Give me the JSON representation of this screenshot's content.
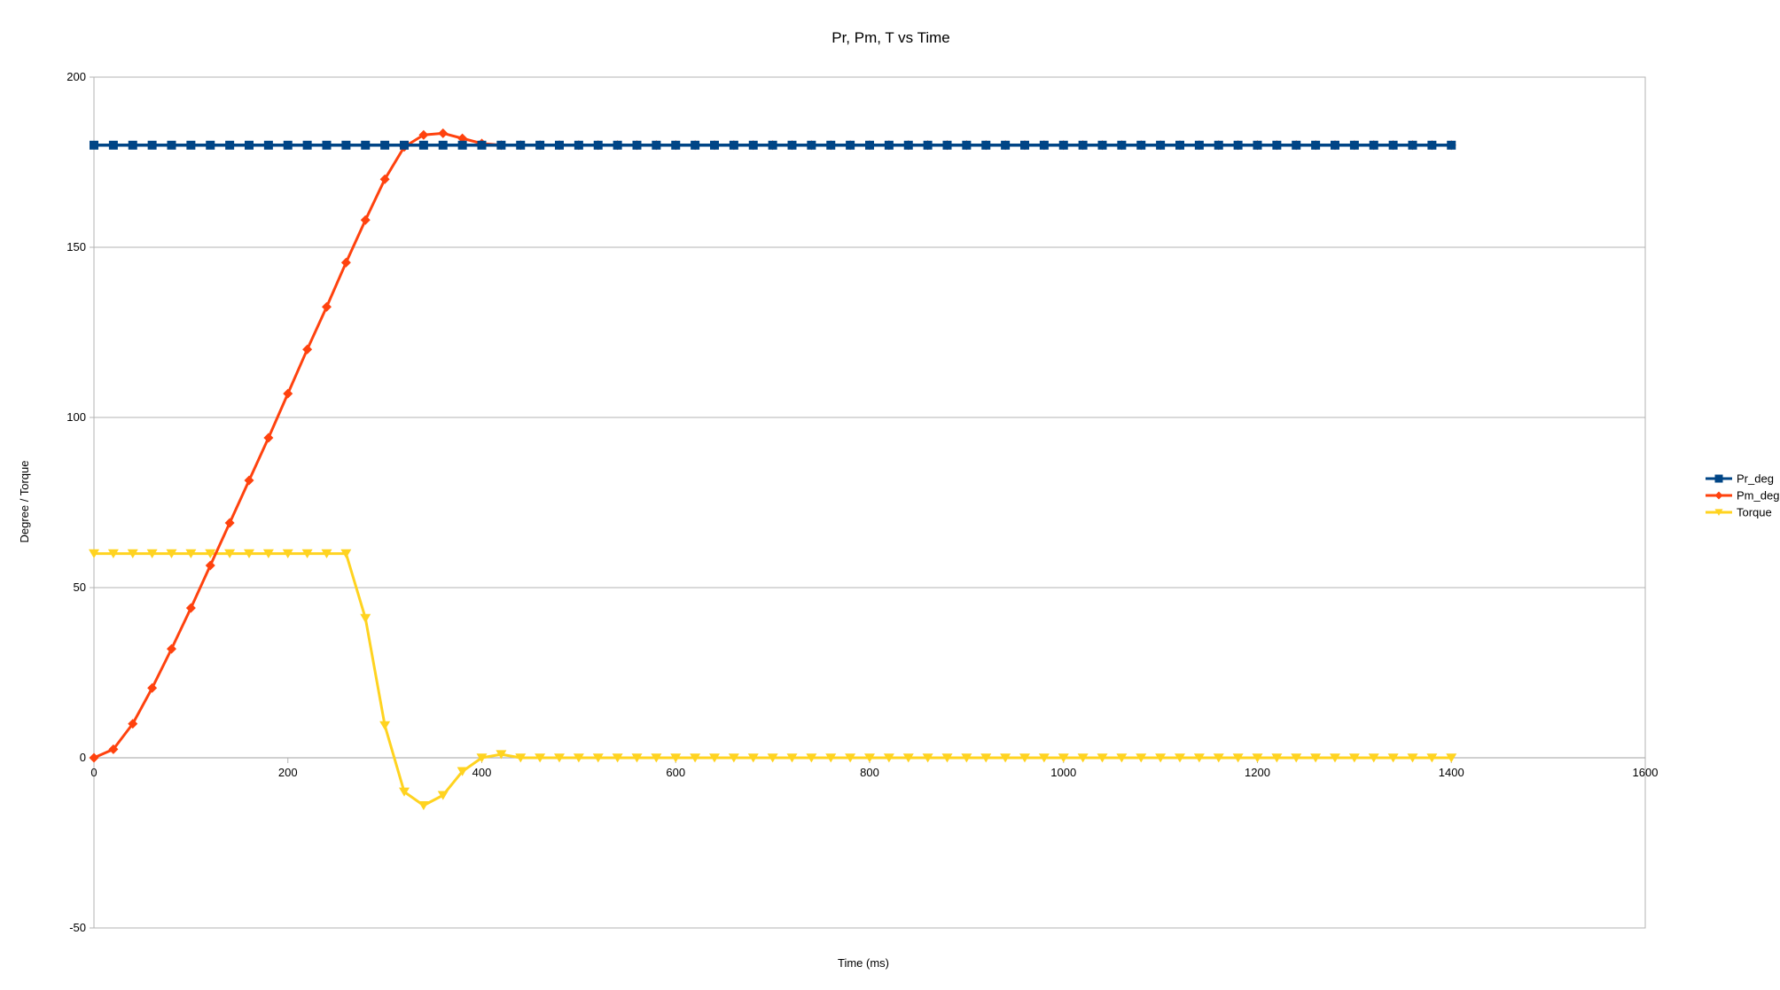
{
  "chart_data": {
    "type": "line",
    "title": "Pr, Pm, T vs Time",
    "xlabel": "Time (ms)",
    "ylabel": "Degree / Torque",
    "xlim": [
      0,
      1600
    ],
    "ylim": [
      -50,
      200
    ],
    "xticks": [
      0,
      200,
      400,
      600,
      800,
      1000,
      1200,
      1400,
      1600
    ],
    "yticks": [
      -50,
      0,
      50,
      100,
      150,
      200
    ],
    "grid": "horizontal",
    "legend_position": "right",
    "x": [
      0,
      20,
      40,
      60,
      80,
      100,
      120,
      140,
      160,
      180,
      200,
      220,
      240,
      260,
      280,
      300,
      320,
      340,
      360,
      380,
      400,
      420,
      440,
      460,
      480,
      500,
      520,
      540,
      560,
      580,
      600,
      620,
      640,
      660,
      680,
      700,
      720,
      740,
      760,
      780,
      800,
      820,
      840,
      860,
      880,
      900,
      920,
      940,
      960,
      980,
      1000,
      1020,
      1040,
      1060,
      1080,
      1100,
      1120,
      1140,
      1160,
      1180,
      1200,
      1220,
      1240,
      1260,
      1280,
      1300,
      1320,
      1340,
      1360,
      1380,
      1400
    ],
    "series": [
      {
        "name": "Pr_deg",
        "color": "#004586",
        "marker": "square",
        "values": [
          180,
          180,
          180,
          180,
          180,
          180,
          180,
          180,
          180,
          180,
          180,
          180,
          180,
          180,
          180,
          180,
          180,
          180,
          180,
          180,
          180,
          180,
          180,
          180,
          180,
          180,
          180,
          180,
          180,
          180,
          180,
          180,
          180,
          180,
          180,
          180,
          180,
          180,
          180,
          180,
          180,
          180,
          180,
          180,
          180,
          180,
          180,
          180,
          180,
          180,
          180,
          180,
          180,
          180,
          180,
          180,
          180,
          180,
          180,
          180,
          180,
          180,
          180,
          180,
          180,
          180,
          180,
          180,
          180,
          180,
          180
        ]
      },
      {
        "name": "Pm_deg",
        "color": "#ff420e",
        "marker": "diamond",
        "values": [
          0,
          2.5,
          10,
          20.5,
          32,
          44,
          56.5,
          69,
          81.5,
          94,
          107,
          120,
          132.5,
          145.5,
          158,
          170,
          179.5,
          183,
          183.5,
          182,
          180.5,
          180,
          180,
          180,
          180,
          180,
          180,
          180,
          180,
          180,
          180,
          180,
          180,
          180,
          180,
          180,
          180,
          180,
          180,
          180,
          180,
          180,
          180,
          180,
          180,
          180,
          180,
          180,
          180,
          180,
          180,
          180,
          180,
          180,
          180,
          180,
          180,
          180,
          180,
          180,
          180,
          180,
          180,
          180,
          180,
          180,
          180,
          180,
          180,
          180,
          180
        ]
      },
      {
        "name": "Torque",
        "color": "#ffd320",
        "marker": "triangle-down",
        "values": [
          60,
          60,
          60,
          60,
          60,
          60,
          60,
          60,
          60,
          60,
          60,
          60,
          60,
          60,
          41,
          9.5,
          -10,
          -14,
          -11,
          -4,
          0,
          1,
          0,
          0,
          0,
          0,
          0,
          0,
          0,
          0,
          0,
          0,
          0,
          0,
          0,
          0,
          0,
          0,
          0,
          0,
          0,
          0,
          0,
          0,
          0,
          0,
          0,
          0,
          0,
          0,
          0,
          0,
          0,
          0,
          0,
          0,
          0,
          0,
          0,
          0,
          0,
          0,
          0,
          0,
          0,
          0,
          0,
          0,
          0,
          0,
          0
        ]
      }
    ]
  }
}
